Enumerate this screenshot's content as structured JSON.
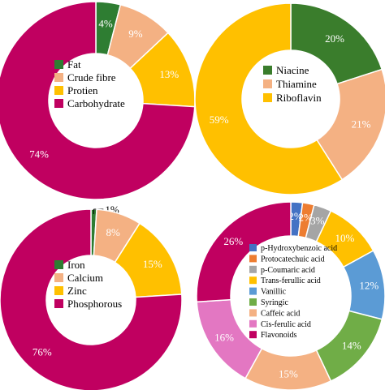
{
  "chart_data": [
    {
      "type": "pie",
      "subtype": "donut",
      "slices": [
        {
          "name": "Fat",
          "value": 4,
          "label": "4%",
          "color": "#2e7d32"
        },
        {
          "name": "Crude fibre",
          "value": 9,
          "label": "9%",
          "color": "#f4b183"
        },
        {
          "name": "Protien",
          "value": 13,
          "label": "13%",
          "color": "#ffc000"
        },
        {
          "name": "Carbohydrate",
          "value": 74,
          "label": "74%",
          "color": "#c00060"
        }
      ]
    },
    {
      "type": "pie",
      "subtype": "donut",
      "slices": [
        {
          "name": "Niacine",
          "value": 20,
          "label": "20%",
          "color": "#3a7d2c"
        },
        {
          "name": "Thiamine",
          "value": 21,
          "label": "21%",
          "color": "#f4b183"
        },
        {
          "name": "Riboflavin",
          "value": 59,
          "label": "59%",
          "color": "#ffc000"
        }
      ]
    },
    {
      "type": "pie",
      "subtype": "donut",
      "slices": [
        {
          "name": "Iron",
          "value": 1,
          "label": "1%",
          "color": "#2e7d32"
        },
        {
          "name": "Calcium",
          "value": 8,
          "label": "8%",
          "color": "#f4b183"
        },
        {
          "name": "Zinc",
          "value": 15,
          "label": "15%",
          "color": "#ffc000"
        },
        {
          "name": "Phosphorous",
          "value": 76,
          "label": "76%",
          "color": "#c00060"
        }
      ]
    },
    {
      "type": "pie",
      "subtype": "donut",
      "slices": [
        {
          "name": "p-Hydroxybenzoic acid",
          "value": 2,
          "label": "2%",
          "color": "#4472c4"
        },
        {
          "name": "Protocatechuic acid",
          "value": 2,
          "label": "2%",
          "color": "#ed7d31"
        },
        {
          "name": "p-Coumaric acid",
          "value": 3,
          "label": "3%",
          "color": "#a5a5a5"
        },
        {
          "name": "Trans-ferullic acid",
          "value": 10,
          "label": "10%",
          "color": "#ffc000"
        },
        {
          "name": "Vanillic",
          "value": 12,
          "label": "12%",
          "color": "#5b9bd5"
        },
        {
          "name": "Syringic",
          "value": 14,
          "label": "14%",
          "color": "#70ad47"
        },
        {
          "name": "Caffeic acid",
          "value": 15,
          "label": "15%",
          "color": "#f4b183"
        },
        {
          "name": "Cis-ferulic acid",
          "value": 16,
          "label": "16%",
          "color": "#e377c2"
        },
        {
          "name": "Flavonoids",
          "value": 26,
          "label": "26%",
          "color": "#c00060"
        }
      ]
    }
  ]
}
